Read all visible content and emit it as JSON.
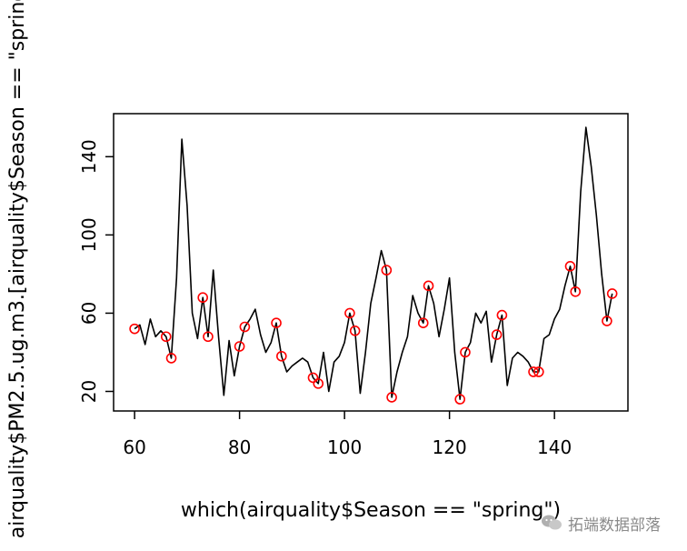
{
  "chart_data": {
    "type": "line",
    "xlabel": "which(airquality$Season == \"spring\")",
    "ylabel": "airquality$PM2.5.ug.m3.[airquality$Season == \"spring",
    "xlim": [
      56,
      154
    ],
    "ylim": [
      10,
      162
    ],
    "xticks": [
      60,
      80,
      100,
      120,
      140
    ],
    "yticks": [
      20,
      60,
      100,
      140
    ],
    "grid": false,
    "line_color": "#000000",
    "marker_color": "#ff0000",
    "series": [
      {
        "x": [
          60,
          61,
          62,
          63,
          64,
          65,
          66,
          67,
          68,
          69,
          70,
          71,
          72,
          73,
          74,
          75,
          76,
          77,
          78,
          79,
          80,
          81,
          82,
          83,
          84,
          85,
          86,
          87,
          88,
          89,
          90,
          91,
          92,
          93,
          94,
          95,
          96,
          97,
          98,
          99,
          100,
          101,
          102,
          103,
          104,
          105,
          106,
          107,
          108,
          109,
          110,
          111,
          112,
          113,
          114,
          115,
          116,
          117,
          118,
          119,
          120,
          121,
          122,
          123,
          124,
          125,
          126,
          127,
          128,
          129,
          130,
          131,
          132,
          133,
          134,
          135,
          136,
          137,
          138,
          139,
          140,
          141,
          142,
          143,
          144,
          145,
          146,
          147,
          148,
          149,
          150,
          151
        ],
        "y": [
          52,
          54,
          44,
          57,
          48,
          51,
          48,
          37,
          78,
          149,
          115,
          60,
          47,
          68,
          48,
          82,
          48,
          18,
          46,
          28,
          43,
          53,
          57,
          62,
          49,
          40,
          45,
          55,
          38,
          30,
          33,
          35,
          37,
          35,
          27,
          24,
          40,
          20,
          35,
          38,
          45,
          60,
          51,
          19,
          40,
          65,
          78,
          92,
          82,
          17,
          30,
          40,
          48,
          69,
          60,
          55,
          74,
          65,
          48,
          62,
          78,
          40,
          16,
          40,
          45,
          60,
          55,
          61,
          35,
          49,
          59,
          23,
          37,
          40,
          38,
          35,
          30,
          30,
          47,
          49,
          57,
          62,
          74,
          84,
          71,
          122,
          155,
          135,
          110,
          80,
          56,
          70
        ]
      }
    ],
    "marked_points": [
      {
        "x": 60,
        "y": 52
      },
      {
        "x": 66,
        "y": 48
      },
      {
        "x": 67,
        "y": 37
      },
      {
        "x": 73,
        "y": 68
      },
      {
        "x": 74,
        "y": 48
      },
      {
        "x": 80,
        "y": 43
      },
      {
        "x": 81,
        "y": 53
      },
      {
        "x": 87,
        "y": 55
      },
      {
        "x": 88,
        "y": 38
      },
      {
        "x": 94,
        "y": 27
      },
      {
        "x": 95,
        "y": 24
      },
      {
        "x": 101,
        "y": 60
      },
      {
        "x": 102,
        "y": 51
      },
      {
        "x": 108,
        "y": 82
      },
      {
        "x": 109,
        "y": 17
      },
      {
        "x": 115,
        "y": 55
      },
      {
        "x": 116,
        "y": 74
      },
      {
        "x": 122,
        "y": 16
      },
      {
        "x": 123,
        "y": 40
      },
      {
        "x": 129,
        "y": 49
      },
      {
        "x": 130,
        "y": 59
      },
      {
        "x": 136,
        "y": 30
      },
      {
        "x": 137,
        "y": 30
      },
      {
        "x": 143,
        "y": 84
      },
      {
        "x": 144,
        "y": 71
      },
      {
        "x": 150,
        "y": 56
      },
      {
        "x": 151,
        "y": 70
      }
    ]
  },
  "watermark": {
    "text": "拓端数据部落",
    "icon": "wechat-icon"
  }
}
